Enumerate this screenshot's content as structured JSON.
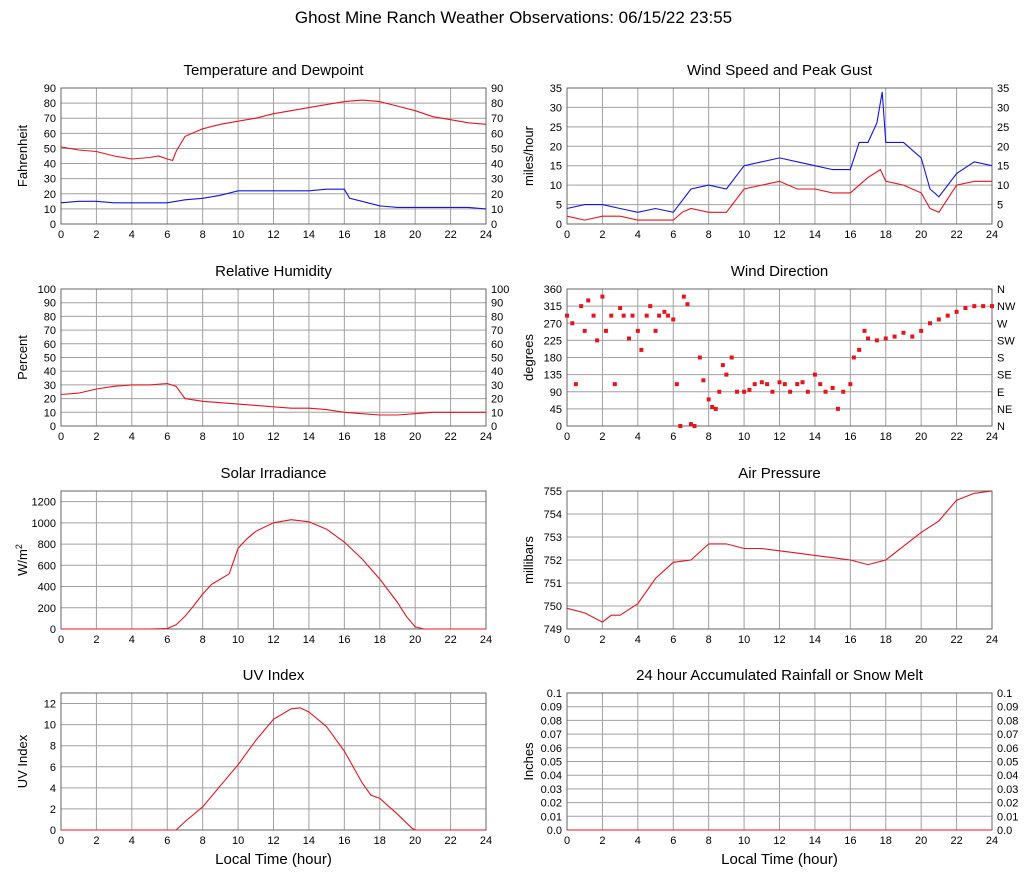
{
  "page": {
    "title": "Ghost Mine Ranch Weather Observations: 06/15/22 23:55"
  },
  "colors": {
    "red": "#e8141c",
    "blue": "#1414e6",
    "grid": "#a0a0a0",
    "frame": "#666666"
  },
  "chart_data": [
    {
      "id": "temperature",
      "type": "line",
      "title": "Temperature and Dewpoint",
      "ylabel": "Fahrenheit",
      "xlim": [
        0,
        24
      ],
      "ylim": [
        0,
        90
      ],
      "yticks": [
        0,
        10,
        20,
        30,
        40,
        50,
        60,
        70,
        80,
        90
      ],
      "right_ticks": [
        "0",
        "10",
        "20",
        "30",
        "40",
        "50",
        "60",
        "70",
        "80",
        "90"
      ],
      "series": [
        {
          "color": "red",
          "x": [
            0,
            1,
            2,
            3,
            4,
            5,
            5.5,
            6,
            6.3,
            6.5,
            7,
            8,
            9,
            10,
            11,
            12,
            13,
            14,
            15,
            16,
            17,
            18,
            19,
            20,
            21,
            22,
            23,
            24
          ],
          "y": [
            51,
            49,
            48,
            45,
            43,
            44,
            45,
            43,
            42,
            48,
            58,
            63,
            66,
            68,
            70,
            73,
            75,
            77,
            79,
            81,
            82,
            81,
            78,
            75,
            71,
            69,
            67,
            66
          ]
        },
        {
          "color": "blue",
          "x": [
            0,
            1,
            2,
            3,
            4,
            5,
            6,
            6.5,
            7,
            8,
            9,
            10,
            11,
            12,
            13,
            14,
            15,
            16,
            16.3,
            17,
            18,
            19,
            20,
            21,
            22,
            23,
            24
          ],
          "y": [
            14,
            15,
            15,
            14,
            14,
            14,
            14,
            15,
            16,
            17,
            19,
            22,
            22,
            22,
            22,
            22,
            23,
            23,
            17,
            15,
            12,
            11,
            11,
            11,
            11,
            11,
            10
          ]
        }
      ]
    },
    {
      "id": "wind_speed",
      "type": "line",
      "title": "Wind Speed and Peak Gust",
      "ylabel": "miles/hour",
      "xlim": [
        0,
        24
      ],
      "ylim": [
        0,
        35
      ],
      "yticks": [
        0,
        5,
        10,
        15,
        20,
        25,
        30,
        35
      ],
      "right_ticks": [
        "0",
        "5",
        "10",
        "15",
        "20",
        "25",
        "30",
        "35"
      ],
      "series": [
        {
          "color": "red",
          "x": [
            0,
            1,
            2,
            3,
            4,
            5,
            6,
            6.5,
            7,
            8,
            9,
            10,
            11,
            12,
            13,
            14,
            15,
            16,
            17,
            17.7,
            18,
            19,
            20,
            20.5,
            21,
            22,
            23,
            24
          ],
          "y": [
            2,
            1,
            2,
            2,
            1,
            1,
            1,
            3,
            4,
            3,
            3,
            9,
            10,
            11,
            9,
            9,
            8,
            8,
            12,
            14,
            11,
            10,
            8,
            4,
            3,
            10,
            11,
            11
          ]
        },
        {
          "color": "blue",
          "x": [
            0,
            1,
            2,
            3,
            4,
            5,
            6,
            6.5,
            7,
            8,
            9,
            10,
            11,
            12,
            13,
            14,
            15,
            16,
            16.5,
            17,
            17.5,
            17.8,
            18,
            19,
            20,
            20.5,
            21,
            22,
            23,
            24
          ],
          "y": [
            4,
            5,
            5,
            4,
            3,
            4,
            3,
            6,
            9,
            10,
            9,
            15,
            16,
            17,
            16,
            15,
            14,
            14,
            21,
            21,
            26,
            34,
            21,
            21,
            17,
            9,
            7,
            13,
            16,
            15
          ]
        }
      ]
    },
    {
      "id": "humidity",
      "type": "line",
      "title": "Relative Humidity",
      "ylabel": "Percent",
      "xlim": [
        0,
        24
      ],
      "ylim": [
        0,
        100
      ],
      "yticks": [
        0,
        10,
        20,
        30,
        40,
        50,
        60,
        70,
        80,
        90,
        100
      ],
      "right_ticks": [
        "0",
        "10",
        "20",
        "30",
        "40",
        "50",
        "60",
        "70",
        "80",
        "90",
        "100"
      ],
      "series": [
        {
          "color": "red",
          "x": [
            0,
            1,
            2,
            3,
            4,
            5,
            6,
            6.5,
            7,
            8,
            9,
            10,
            11,
            12,
            13,
            14,
            15,
            16,
            17,
            18,
            19,
            20,
            21,
            22,
            23,
            24
          ],
          "y": [
            23,
            24,
            27,
            29,
            30,
            30,
            31,
            29,
            20,
            18,
            17,
            16,
            15,
            14,
            13,
            13,
            12,
            10,
            9,
            8,
            8,
            9,
            10,
            10,
            10,
            10
          ]
        }
      ]
    },
    {
      "id": "wind_dir",
      "type": "scatter",
      "title": "Wind Direction",
      "ylabel": "degrees",
      "xlim": [
        0,
        24
      ],
      "ylim": [
        0,
        360
      ],
      "yticks": [
        0,
        45,
        90,
        135,
        180,
        225,
        270,
        315,
        360
      ],
      "right_ticks": [
        "N",
        "NE",
        "E",
        "SE",
        "S",
        "SW",
        "W",
        "NW",
        "N"
      ],
      "series": [
        {
          "color": "red",
          "x": [
            0,
            0.3,
            0.5,
            0.8,
            1,
            1.2,
            1.5,
            1.7,
            2,
            2.2,
            2.5,
            2.7,
            3,
            3.2,
            3.5,
            3.7,
            4,
            4.2,
            4.5,
            4.7,
            5,
            5.2,
            5.5,
            5.7,
            6,
            6.2,
            6.4,
            6.6,
            6.8,
            7,
            7.2,
            7.5,
            7.7,
            8,
            8.2,
            8.4,
            8.6,
            8.8,
            9,
            9.3,
            9.6,
            10,
            10.3,
            10.6,
            11,
            11.3,
            11.6,
            12,
            12.3,
            12.6,
            13,
            13.3,
            13.6,
            14,
            14.3,
            14.6,
            15,
            15.3,
            15.6,
            16,
            16.2,
            16.5,
            16.8,
            17,
            17.5,
            18,
            18.5,
            19,
            19.5,
            20,
            20.5,
            21,
            21.5,
            22,
            22.5,
            23,
            23.5,
            24
          ],
          "y": [
            290,
            270,
            110,
            315,
            250,
            330,
            290,
            225,
            340,
            250,
            290,
            110,
            310,
            290,
            230,
            290,
            250,
            200,
            290,
            315,
            250,
            290,
            300,
            290,
            280,
            110,
            0,
            340,
            320,
            5,
            0,
            180,
            120,
            70,
            50,
            45,
            90,
            160,
            135,
            180,
            90,
            90,
            95,
            110,
            115,
            110,
            90,
            115,
            110,
            90,
            110,
            115,
            90,
            135,
            110,
            90,
            100,
            45,
            90,
            110,
            180,
            200,
            250,
            230,
            225,
            230,
            235,
            245,
            235,
            250,
            270,
            280,
            290,
            300,
            310,
            315,
            315,
            315
          ]
        }
      ]
    },
    {
      "id": "solar",
      "type": "line",
      "title": "Solar Irradiance",
      "ylabel": "W/m2",
      "xlim": [
        0,
        24
      ],
      "ylim": [
        0,
        1300
      ],
      "yticks": [
        0,
        200,
        400,
        600,
        800,
        1000,
        1200
      ],
      "series": [
        {
          "color": "red",
          "x": [
            0,
            5,
            6,
            6.5,
            7,
            7.5,
            8,
            8.5,
            9,
            9.5,
            10,
            10.5,
            11,
            12,
            13,
            14,
            15,
            16,
            17,
            18,
            19,
            19.5,
            20,
            20.5,
            21,
            24
          ],
          "y": [
            0,
            0,
            5,
            40,
            120,
            220,
            330,
            420,
            470,
            520,
            760,
            850,
            920,
            1000,
            1030,
            1010,
            940,
            820,
            660,
            470,
            250,
            120,
            20,
            0,
            0,
            0
          ]
        }
      ]
    },
    {
      "id": "pressure",
      "type": "line",
      "title": "Air Pressure",
      "ylabel": "millibars",
      "xlim": [
        0,
        24
      ],
      "ylim": [
        749,
        755
      ],
      "yticks": [
        749,
        750,
        751,
        752,
        753,
        754,
        755
      ],
      "series": [
        {
          "color": "red",
          "x": [
            0,
            1,
            2,
            2.5,
            3,
            4,
            5,
            6,
            7,
            8,
            9,
            10,
            11,
            12,
            13,
            14,
            15,
            16,
            17,
            18,
            19,
            20,
            21,
            22,
            23,
            24
          ],
          "y": [
            749.9,
            749.7,
            749.3,
            749.6,
            749.6,
            750.1,
            751.2,
            751.9,
            752.0,
            752.7,
            752.7,
            752.5,
            752.5,
            752.4,
            752.3,
            752.2,
            752.1,
            752.0,
            751.8,
            752.0,
            752.6,
            753.2,
            753.7,
            754.6,
            754.9,
            755.0
          ]
        }
      ]
    },
    {
      "id": "uv",
      "type": "line",
      "title": "UV Index",
      "ylabel": "UV Index",
      "xlabel": "Local Time (hour)",
      "xlim": [
        0,
        24
      ],
      "ylim": [
        0,
        13
      ],
      "yticks": [
        0,
        2,
        4,
        6,
        8,
        10,
        12
      ],
      "series": [
        {
          "color": "red",
          "x": [
            0,
            6.5,
            7,
            8,
            9,
            10,
            11,
            12,
            13,
            13.5,
            14,
            15,
            16,
            17,
            17.5,
            18,
            19,
            19.8,
            20,
            24
          ],
          "y": [
            0,
            0,
            0.8,
            2.2,
            4.2,
            6.2,
            8.5,
            10.5,
            11.5,
            11.6,
            11.2,
            9.8,
            7.5,
            4.5,
            3.3,
            3.0,
            1.5,
            0.2,
            0,
            0
          ]
        }
      ]
    },
    {
      "id": "rain",
      "type": "line",
      "title": "24 hour Accumulated Rainfall or Snow Melt",
      "ylabel": "Inches",
      "xlabel": "Local Time (hour)",
      "xlim": [
        0,
        24
      ],
      "ylim": [
        0,
        0.1
      ],
      "yticks": [
        0,
        0.01,
        0.02,
        0.03,
        0.04,
        0.05,
        0.06,
        0.07,
        0.08,
        0.09,
        0.1
      ],
      "yticklabels": [
        "0.0",
        "0.01",
        "0.02",
        "0.03",
        "0.04",
        "0.05",
        "0.06",
        "0.07",
        "0.08",
        "0.09",
        "0.1"
      ],
      "right_ticks": [
        "0.0",
        "0.01",
        "0.02",
        "0.03",
        "0.04",
        "0.05",
        "0.06",
        "0.07",
        "0.08",
        "0.09",
        "0.1"
      ],
      "series": [
        {
          "color": "red",
          "x": [
            0,
            24
          ],
          "y": [
            0,
            0
          ]
        }
      ]
    }
  ],
  "xticks": [
    "0",
    "2",
    "4",
    "6",
    "8",
    "10",
    "12",
    "14",
    "16",
    "18",
    "20",
    "22",
    "24"
  ]
}
